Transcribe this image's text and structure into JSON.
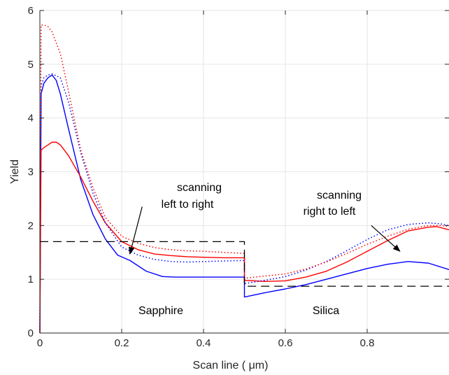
{
  "chart_data": {
    "type": "line",
    "title": "",
    "xlabel": "Scan line (  μm)",
    "ylabel": "Yield",
    "xlim": [
      0,
      1
    ],
    "ylim": [
      0,
      6
    ],
    "xticks": [
      "0",
      "0.2",
      "0.4",
      "0.6",
      "0.8"
    ],
    "xtick_values": [
      0,
      0.2,
      0.4,
      0.6,
      0.8
    ],
    "yticks": [
      "0",
      "1",
      "2",
      "3",
      "4",
      "5",
      "6"
    ],
    "ytick_values": [
      0,
      1,
      2,
      3,
      4,
      5,
      6
    ],
    "grid": true,
    "series": [
      {
        "color": "#0000ff",
        "style": "solid",
        "x": [
          0,
          0.003,
          0.01,
          0.02,
          0.03,
          0.04,
          0.05,
          0.07,
          0.1,
          0.13,
          0.16,
          0.19,
          0.22,
          0.26,
          0.3,
          0.33,
          0.36,
          0.4,
          0.45,
          0.5,
          0.5,
          0.55,
          0.6,
          0.65,
          0.7,
          0.75,
          0.8,
          0.85,
          0.9,
          0.95,
          1.0
        ],
        "y": [
          0,
          4.45,
          4.65,
          4.75,
          4.8,
          4.7,
          4.45,
          3.8,
          2.85,
          2.2,
          1.75,
          1.45,
          1.35,
          1.15,
          1.05,
          1.04,
          1.04,
          1.04,
          1.04,
          1.04,
          0.67,
          0.75,
          0.82,
          0.9,
          1.0,
          1.1,
          1.2,
          1.28,
          1.33,
          1.3,
          1.18
        ]
      },
      {
        "color": "#ff0000",
        "style": "solid",
        "x": [
          0,
          0.003,
          0.01,
          0.02,
          0.03,
          0.04,
          0.05,
          0.07,
          0.1,
          0.13,
          0.16,
          0.2,
          0.24,
          0.28,
          0.32,
          0.36,
          0.4,
          0.45,
          0.5,
          0.5,
          0.55,
          0.6,
          0.65,
          0.7,
          0.75,
          0.8,
          0.85,
          0.9,
          0.95,
          0.97,
          1.0
        ],
        "y": [
          0,
          3.4,
          3.45,
          3.5,
          3.55,
          3.55,
          3.5,
          3.3,
          2.9,
          2.45,
          2.05,
          1.7,
          1.55,
          1.47,
          1.44,
          1.42,
          1.41,
          1.4,
          1.4,
          0.98,
          0.96,
          0.97,
          1.04,
          1.15,
          1.32,
          1.52,
          1.72,
          1.9,
          1.97,
          1.98,
          1.92
        ]
      },
      {
        "color": "#0000ff",
        "style": "dotted",
        "x": [
          0,
          0.003,
          0.01,
          0.02,
          0.03,
          0.05,
          0.07,
          0.1,
          0.13,
          0.16,
          0.2,
          0.24,
          0.28,
          0.32,
          0.36,
          0.4,
          0.45,
          0.5,
          0.5,
          0.55,
          0.6,
          0.65,
          0.7,
          0.75,
          0.8,
          0.85,
          0.9,
          0.95,
          0.98,
          1.0
        ],
        "y": [
          0,
          4.6,
          4.75,
          4.8,
          4.82,
          4.75,
          4.3,
          3.35,
          2.6,
          2.05,
          1.6,
          1.45,
          1.37,
          1.33,
          1.32,
          1.33,
          1.34,
          1.35,
          0.92,
          0.98,
          1.05,
          1.17,
          1.33,
          1.53,
          1.74,
          1.92,
          2.02,
          2.05,
          2.03,
          2.0
        ]
      },
      {
        "color": "#ff0000",
        "style": "dotted",
        "x": [
          0,
          0.003,
          0.01,
          0.02,
          0.03,
          0.05,
          0.07,
          0.1,
          0.13,
          0.16,
          0.2,
          0.24,
          0.28,
          0.32,
          0.36,
          0.4,
          0.45,
          0.5,
          0.5,
          0.55,
          0.6,
          0.65,
          0.7,
          0.75,
          0.8,
          0.85,
          0.9,
          0.95,
          0.98,
          1.0
        ],
        "y": [
          0,
          5.73,
          5.73,
          5.7,
          5.6,
          5.2,
          4.5,
          3.4,
          2.7,
          2.15,
          1.8,
          1.67,
          1.59,
          1.55,
          1.53,
          1.52,
          1.5,
          1.48,
          1.02,
          1.06,
          1.1,
          1.19,
          1.32,
          1.48,
          1.65,
          1.8,
          1.93,
          2.0,
          2.0,
          1.98
        ]
      },
      {
        "color": "#000000",
        "style": "dashed",
        "x": [
          0,
          0.5,
          0.5,
          1.0
        ],
        "y": [
          1.7,
          1.7,
          0.87,
          0.87
        ]
      }
    ],
    "annotations": [
      {
        "lines": [
          "scanning",
          "left to right"
        ],
        "arrow_from": [
          0.25,
          2.35
        ],
        "arrow_to": [
          0.22,
          1.47
        ]
      },
      {
        "lines": [
          "scanning",
          "right to left"
        ],
        "arrow_from": [
          0.81,
          2.0
        ],
        "arrow_to": [
          0.88,
          1.52
        ]
      },
      {
        "lines": [
          "Sapphire"
        ],
        "at": [
          0.315,
          0.42
        ]
      },
      {
        "lines": [
          "Silica"
        ],
        "at": [
          0.71,
          0.42
        ]
      }
    ]
  }
}
